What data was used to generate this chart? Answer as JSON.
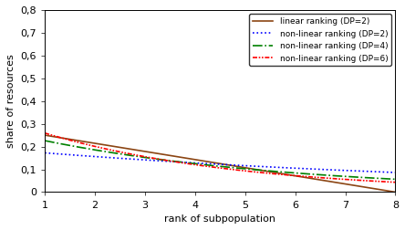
{
  "n": 8,
  "DP_linear": 2,
  "DP_nonlinear": [
    2,
    4,
    6
  ],
  "ylim": [
    0,
    0.8
  ],
  "yticks": [
    0,
    0.1,
    0.2,
    0.3,
    0.4,
    0.5,
    0.6,
    0.7,
    0.8
  ],
  "ytick_labels": [
    "0",
    "0,1",
    "0,2",
    "0,3",
    "0,4",
    "0,5",
    "0,6",
    "0,7",
    "0,8"
  ],
  "xticks": [
    1,
    2,
    3,
    4,
    5,
    6,
    7,
    8
  ],
  "xlabel": "rank of subpopulation",
  "ylabel": "share of resources",
  "color_linear": "#8B4513",
  "color_nl2": "#0000FF",
  "color_nl4": "#008000",
  "color_nl6": "#FF0000",
  "legend_labels": [
    "linear ranking (DP=2)",
    "non-linear ranking (DP=2)",
    "non-linear ranking (DP=4)",
    "non-linear ranking (DP=6)"
  ],
  "background_color": "#ffffff",
  "font_size": 8
}
